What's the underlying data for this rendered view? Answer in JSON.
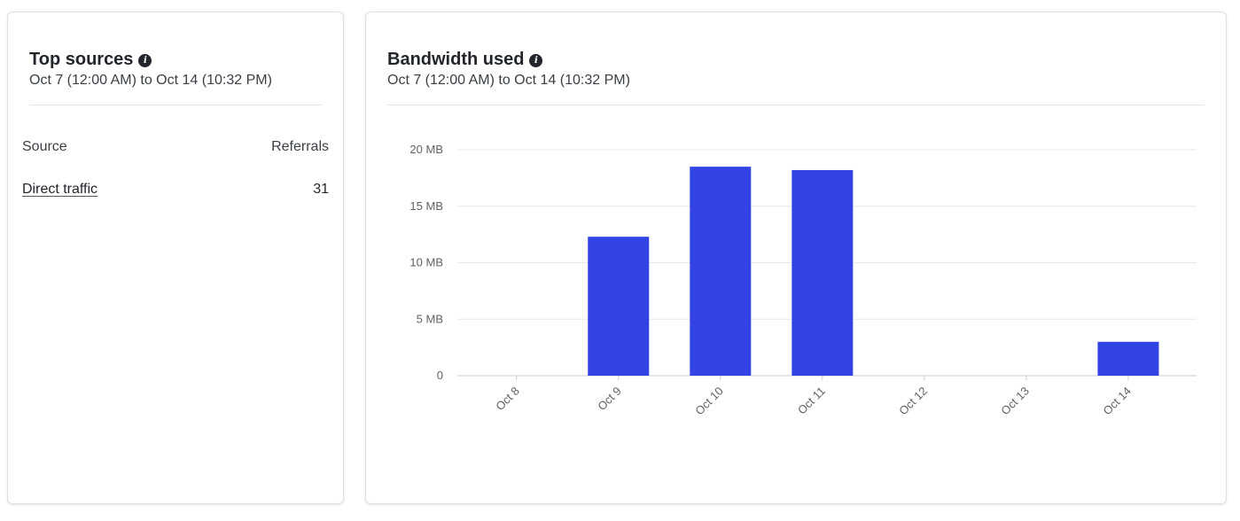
{
  "top_sources": {
    "title": "Top sources",
    "info_icon": "info-icon",
    "date_range": "Oct 7 (12:00 AM) to Oct 14 (10:32 PM)",
    "columns": [
      "Source",
      "Referrals"
    ],
    "rows": [
      {
        "source": "Direct traffic",
        "referrals": "31"
      }
    ]
  },
  "bandwidth": {
    "title": "Bandwidth used",
    "info_icon": "info-icon",
    "date_range": "Oct 7 (12:00 AM) to Oct 14 (10:32 PM)"
  },
  "colors": {
    "bar": "#3144e3",
    "grid": "#e6e8eb",
    "axis": "#c8ccd1"
  },
  "chart_data": {
    "type": "bar",
    "categories": [
      "Oct 8",
      "Oct 9",
      "Oct 10",
      "Oct 11",
      "Oct 12",
      "Oct 13",
      "Oct 14"
    ],
    "values": [
      0,
      12.3,
      18.5,
      18.2,
      0,
      0,
      3.0
    ],
    "ylim": [
      0,
      20
    ],
    "yticks": [
      0,
      5,
      10,
      15,
      20
    ],
    "ytick_labels": [
      "0",
      "5 MB",
      "10 MB",
      "15 MB",
      "20 MB"
    ],
    "ylabel": "",
    "xlabel": "",
    "grid": true,
    "legend": false
  }
}
